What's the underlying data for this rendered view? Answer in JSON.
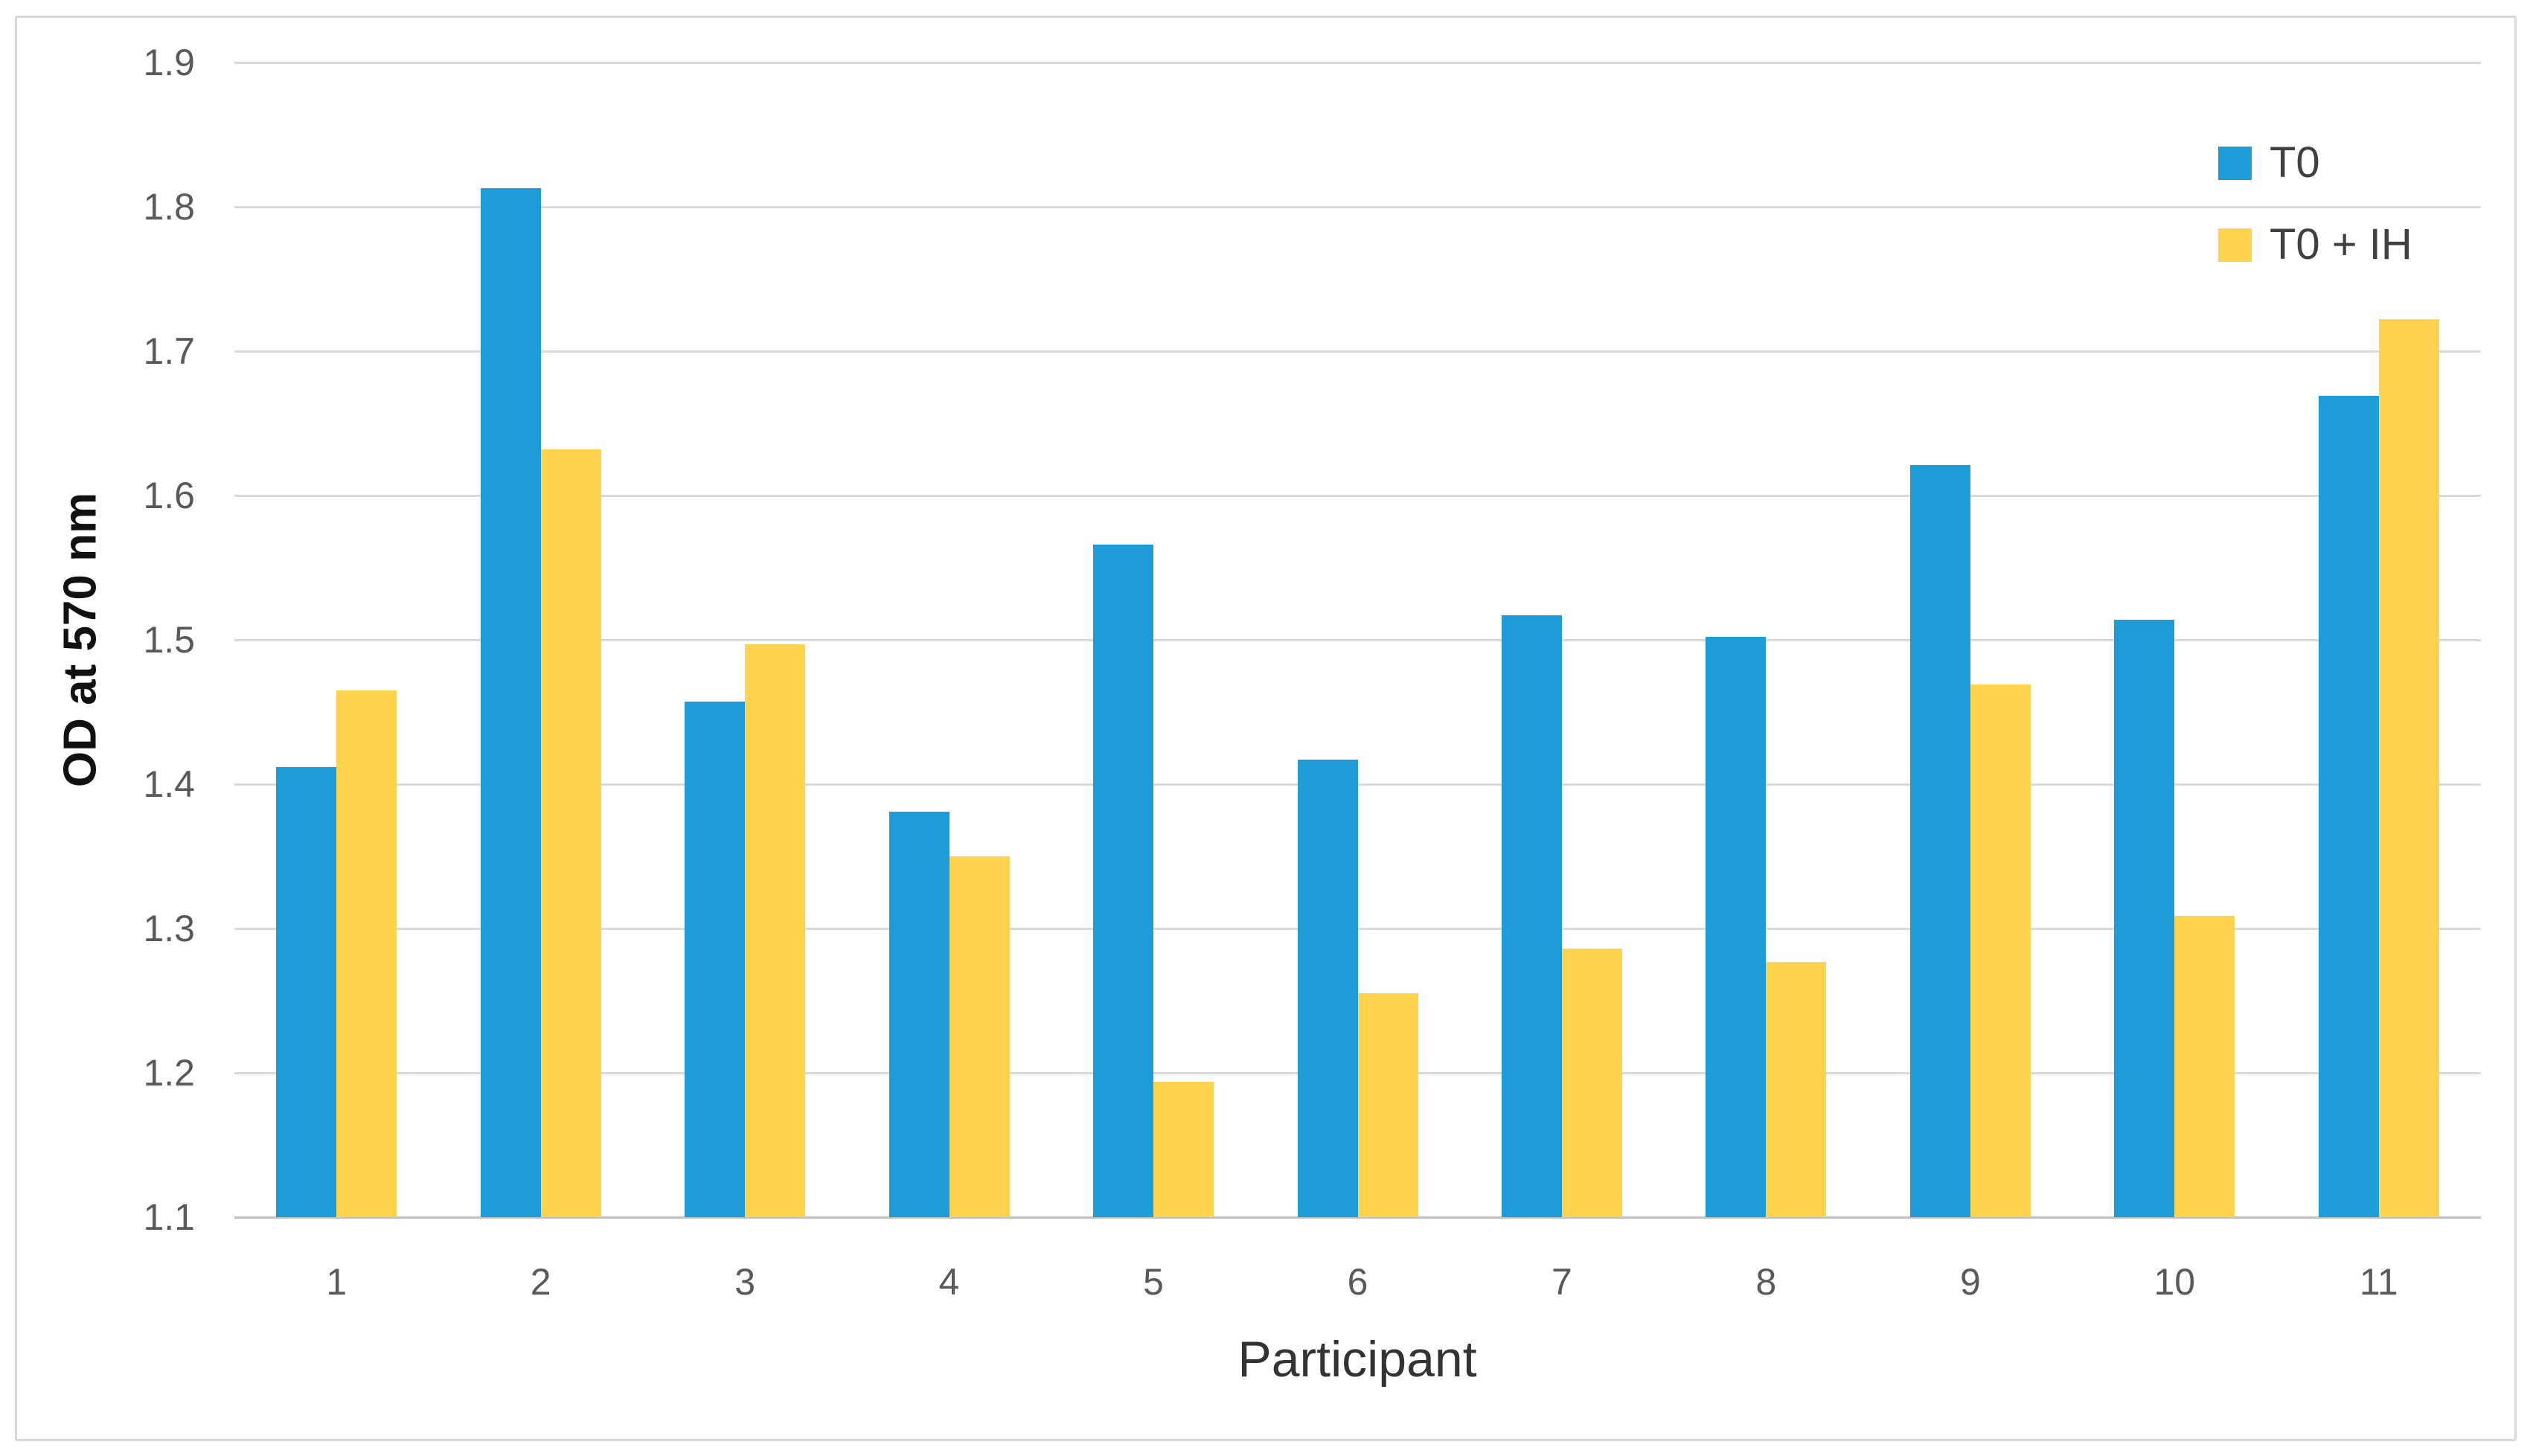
{
  "figure": {
    "background": "#ffffff",
    "border_color": "#d8d8d8",
    "gridline_color": "#dadada",
    "axis_line_color": "#c0c0c0",
    "tick_label_color": "#595959"
  },
  "chart_data": {
    "type": "bar",
    "title": "",
    "xlabel": "Participant",
    "ylabel": "OD at 570 nm",
    "categories": [
      "1",
      "2",
      "3",
      "4",
      "5",
      "6",
      "7",
      "8",
      "9",
      "10",
      "11"
    ],
    "series": [
      {
        "name": "T0",
        "color": "#1e9cd7",
        "values": [
          1.412,
          1.813,
          1.457,
          1.381,
          1.566,
          1.417,
          1.517,
          1.502,
          1.621,
          1.514,
          1.669
        ]
      },
      {
        "name": "T0 + IH",
        "color": "#ffd34d",
        "values": [
          1.465,
          1.632,
          1.497,
          1.35,
          1.194,
          1.255,
          1.286,
          1.277,
          1.469,
          1.309,
          1.722
        ]
      }
    ],
    "ylim": [
      1.1,
      1.9
    ],
    "ytick_step": 0.1,
    "yticks": [
      "1.1",
      "1.2",
      "1.3",
      "1.4",
      "1.5",
      "1.6",
      "1.7",
      "1.8",
      "1.9"
    ],
    "grid": "horizontal",
    "legend_position": "top-right"
  }
}
